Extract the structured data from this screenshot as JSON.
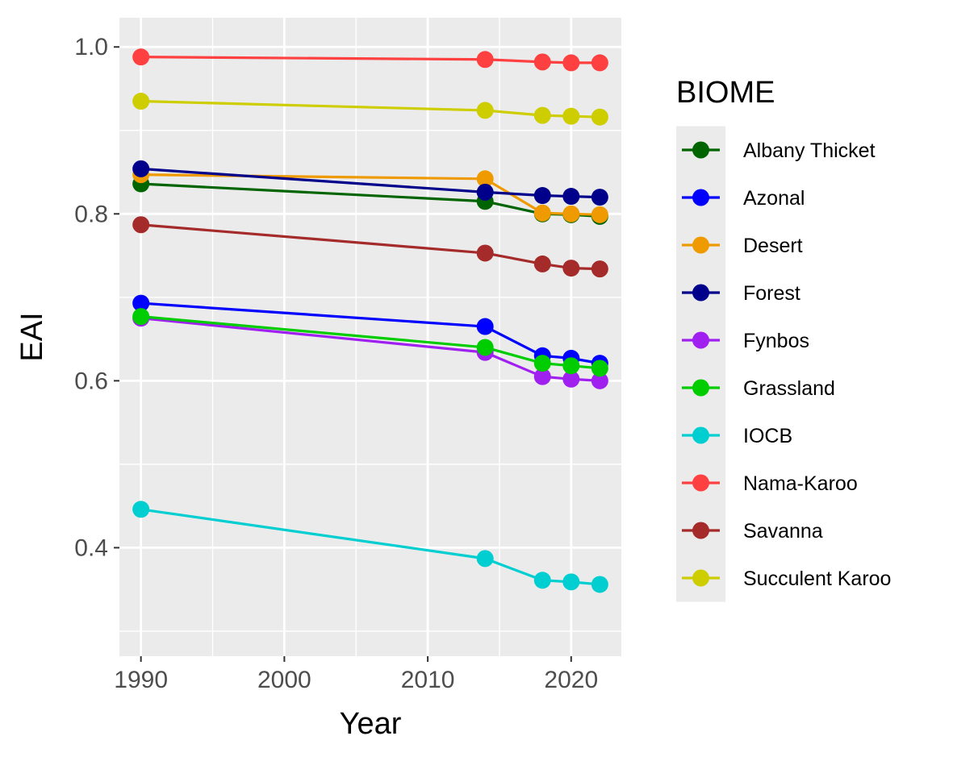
{
  "chart_data": {
    "type": "line",
    "xlabel": "Year",
    "ylabel": "EAI",
    "xlim": [
      1988.5,
      2023.5
    ],
    "ylim": [
      0.27,
      1.035
    ],
    "x_ticks": [
      1990,
      2000,
      2010,
      2020
    ],
    "y_ticks": [
      0.4,
      0.6,
      0.8,
      1.0
    ],
    "y_tick_labels": [
      "0.4",
      "0.6",
      "0.8",
      "1.0"
    ],
    "grid": true,
    "legend": {
      "title": "BIOME",
      "position": "right"
    },
    "x": [
      1990,
      2014,
      2018,
      2020,
      2022
    ],
    "series": [
      {
        "name": "Albany Thicket",
        "color": "#006400",
        "values": [
          0.836,
          0.815,
          0.8,
          0.799,
          0.797
        ]
      },
      {
        "name": "Azonal",
        "color": "#0000FF",
        "values": [
          0.693,
          0.665,
          0.63,
          0.627,
          0.621
        ]
      },
      {
        "name": "Desert",
        "color": "#EE9A00",
        "values": [
          0.847,
          0.842,
          0.801,
          0.8,
          0.799
        ]
      },
      {
        "name": "Forest",
        "color": "#00008B",
        "values": [
          0.854,
          0.826,
          0.822,
          0.821,
          0.82
        ]
      },
      {
        "name": "Fynbos",
        "color": "#A020F0",
        "values": [
          0.675,
          0.634,
          0.605,
          0.602,
          0.6
        ]
      },
      {
        "name": "Grassland",
        "color": "#00CD00",
        "values": [
          0.677,
          0.64,
          0.621,
          0.618,
          0.615
        ]
      },
      {
        "name": "IOCB",
        "color": "#00CED1",
        "values": [
          0.446,
          0.387,
          0.361,
          0.359,
          0.356
        ]
      },
      {
        "name": "Nama-Karoo",
        "color": "#FF4040",
        "values": [
          0.988,
          0.985,
          0.982,
          0.981,
          0.981
        ]
      },
      {
        "name": "Savanna",
        "color": "#A52A2A",
        "values": [
          0.787,
          0.753,
          0.74,
          0.735,
          0.734
        ]
      },
      {
        "name": "Succulent Karoo",
        "color": "#CDCD00",
        "values": [
          0.935,
          0.924,
          0.918,
          0.917,
          0.916
        ]
      }
    ]
  }
}
